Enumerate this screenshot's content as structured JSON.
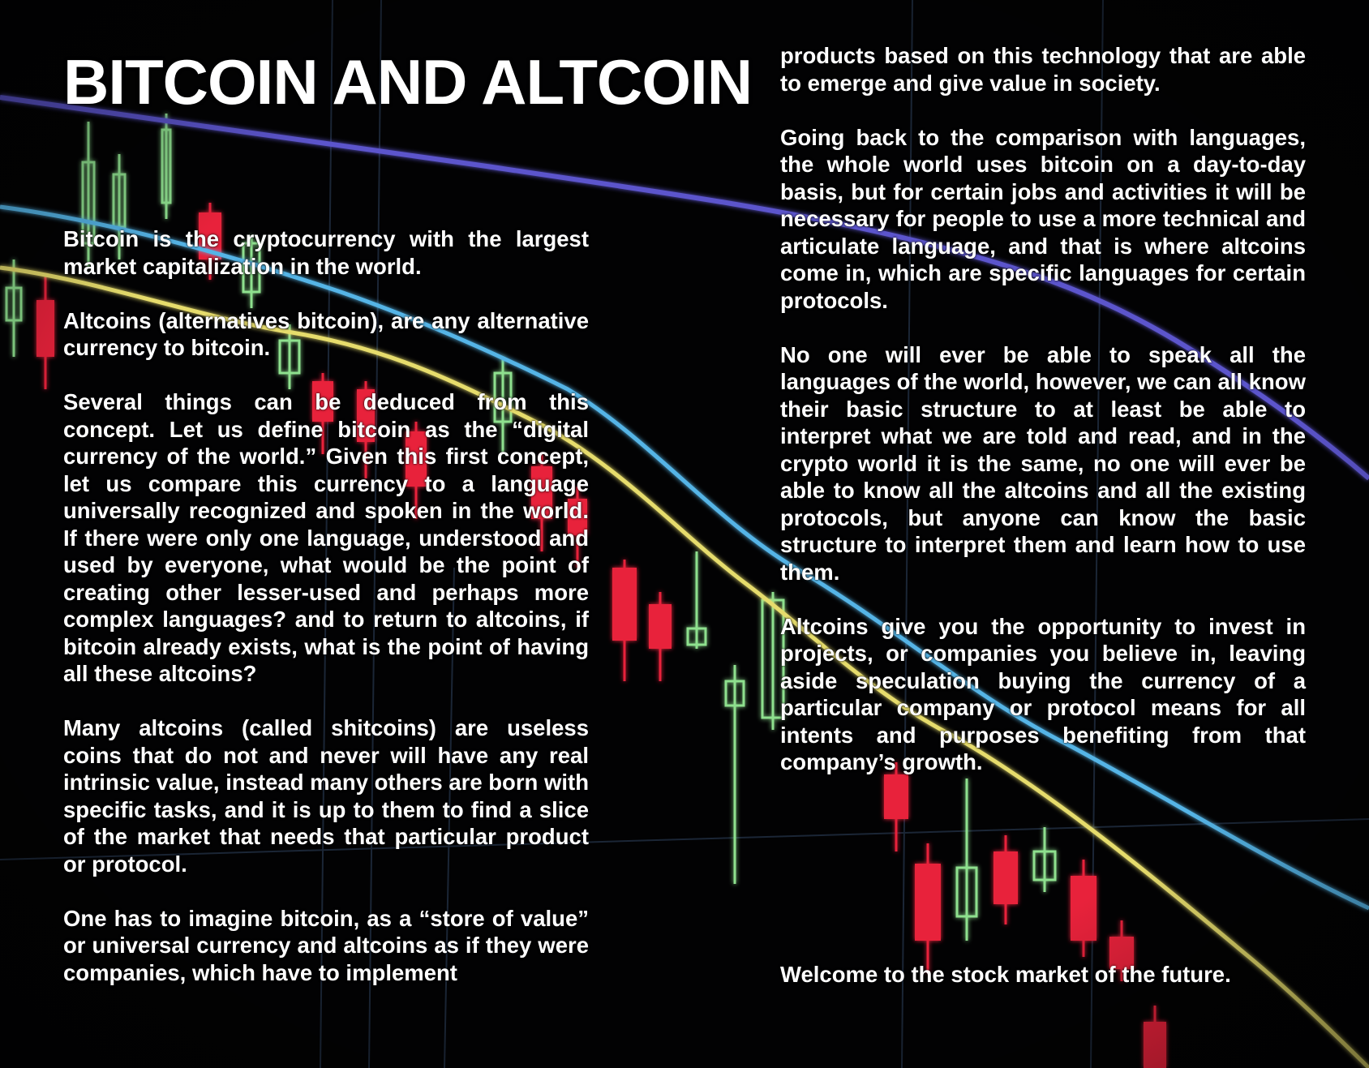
{
  "background": {
    "icon": "candlestick-chart-image",
    "colors": {
      "base": "#020203",
      "up_candle": "#8ee08e",
      "down_candle": "#e8243a",
      "yellow_line": "#e8e070",
      "cyan_line": "#5ab8e8",
      "purple_line": "#5a52c8",
      "grid": "#1e2a3a"
    }
  },
  "title": "BITCOIN AND ALTCOIN",
  "left_column": [
    "Bitcoin is the cryptocurrency with the largest market capitalization in the world.",
    "Altcoins (alternatives bitcoin), are any alternative currency to bitcoin.",
    "Several things can be deduced from this concept. Let us define bitcoin as the “digital currency of the world.” Given this first concept, let us compare this currency to a language universally recognized and spoken in the world. If there were only one language, understood and used by everyone, what would be the point of creating other lesser-used and perhaps more complex languages? and to return to altcoins, if bitcoin already exists, what is the point of having all these altcoins?",
    "Many altcoins (called shitcoins) are useless coins that do not and never will have any real intrinsic value, instead many others are born with specific tasks, and it is up to them to find a slice of the market that needs that particular product or protocol.",
    "One has to imagine bitcoin, as a “store of value” or universal currency and altcoins as if they were companies, which have to implement"
  ],
  "right_column": [
    "products based on this technology that are able to emerge and give value in society.",
    "Going back to the comparison with languages, the whole world uses bitcoin on a day-to-day basis, but for certain jobs and activities it will be necessary for people to use a more technical and articulate language, and that is where altcoins come in, which are specific languages for certain protocols.",
    "No one will ever be able to speak all the languages of the world, however, we can all know their basic structure to at least be able to interpret what we are told and read, and in the crypto world it is the same, no one will ever be able to know all the altcoins and all the existing protocols, but anyone can know the basic structure to interpret them and learn how to use them.",
    "Altcoins give you the opportunity to invest in projects, or companies you believe in, leaving aside speculation buying the currency of a particular company or protocol means for all intents and purposes benefiting from that company’s growth."
  ],
  "closing_line": "Welcome to the stock market of the future."
}
